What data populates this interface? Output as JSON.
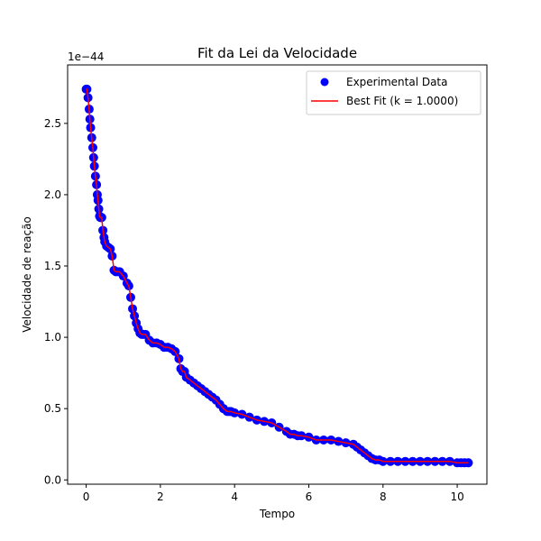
{
  "chart_data": {
    "type": "scatter",
    "title": "Fit da Lei da Velocidade",
    "xlabel": "Tempo",
    "ylabel": "Velocidade de reação",
    "y_offset_label": "1e−44",
    "xlim": [
      -0.5,
      10.8
    ],
    "ylim": [
      -0.03,
      2.91
    ],
    "x_ticks": [
      0,
      2,
      4,
      6,
      8,
      10
    ],
    "x_tick_labels": [
      "0",
      "2",
      "4",
      "6",
      "8",
      "10"
    ],
    "y_ticks": [
      0.0,
      0.5,
      1.0,
      1.5,
      2.0,
      2.5
    ],
    "y_tick_labels": [
      "0.0",
      "0.5",
      "1.0",
      "1.5",
      "2.0",
      "2.5"
    ],
    "grid": false,
    "legend_position": "top-right",
    "series": [
      {
        "name": "Experimental Data",
        "kind": "scatter",
        "color": "#0000ff",
        "x": [
          0.0,
          0.02,
          0.05,
          0.08,
          0.1,
          0.12,
          0.15,
          0.18,
          0.2,
          0.22,
          0.25,
          0.28,
          0.3,
          0.32,
          0.34,
          0.36,
          0.38,
          0.4,
          0.42,
          0.45,
          0.48,
          0.5,
          0.55,
          0.6,
          0.65,
          0.7,
          0.75,
          0.8,
          0.85,
          0.9,
          1.0,
          1.1,
          1.15,
          1.2,
          1.25,
          1.3,
          1.35,
          1.4,
          1.45,
          1.5,
          1.55,
          1.6,
          1.7,
          1.8,
          1.9,
          2.0,
          2.1,
          2.2,
          2.3,
          2.4,
          2.5,
          2.55,
          2.6,
          2.65,
          2.7,
          2.8,
          2.9,
          3.0,
          3.1,
          3.2,
          3.3,
          3.4,
          3.5,
          3.6,
          3.7,
          3.8,
          3.85,
          3.9,
          4.0,
          4.2,
          4.4,
          4.6,
          4.8,
          5.0,
          5.2,
          5.4,
          5.5,
          5.6,
          5.7,
          5.8,
          6.0,
          6.2,
          6.4,
          6.6,
          6.8,
          7.0,
          7.2,
          7.3,
          7.4,
          7.5,
          7.6,
          7.7,
          7.8,
          7.9,
          8.0,
          8.2,
          8.4,
          8.6,
          8.8,
          9.0,
          9.2,
          9.4,
          9.6,
          9.8,
          10.0,
          10.1,
          10.2,
          10.3
        ],
        "y": [
          2.74,
          2.74,
          2.68,
          2.6,
          2.53,
          2.47,
          2.4,
          2.33,
          2.26,
          2.2,
          2.13,
          2.07,
          2.0,
          1.96,
          1.9,
          1.85,
          1.84,
          1.84,
          1.84,
          1.75,
          1.7,
          1.67,
          1.64,
          1.63,
          1.62,
          1.57,
          1.47,
          1.46,
          1.46,
          1.46,
          1.43,
          1.38,
          1.36,
          1.28,
          1.2,
          1.15,
          1.1,
          1.06,
          1.03,
          1.02,
          1.02,
          1.02,
          0.98,
          0.96,
          0.96,
          0.95,
          0.93,
          0.93,
          0.92,
          0.9,
          0.85,
          0.78,
          0.76,
          0.76,
          0.72,
          0.7,
          0.68,
          0.66,
          0.64,
          0.62,
          0.6,
          0.58,
          0.56,
          0.53,
          0.5,
          0.48,
          0.48,
          0.48,
          0.47,
          0.46,
          0.44,
          0.42,
          0.41,
          0.4,
          0.37,
          0.34,
          0.32,
          0.32,
          0.31,
          0.31,
          0.3,
          0.28,
          0.28,
          0.28,
          0.27,
          0.26,
          0.25,
          0.23,
          0.21,
          0.19,
          0.17,
          0.15,
          0.14,
          0.14,
          0.13,
          0.13,
          0.13,
          0.13,
          0.13,
          0.13,
          0.13,
          0.13,
          0.13,
          0.13,
          0.12,
          0.12,
          0.12,
          0.12
        ]
      },
      {
        "name": "Best Fit (k = 1.0000)",
        "kind": "line",
        "color": "#ff0000",
        "same_as_series": 0
      }
    ]
  }
}
